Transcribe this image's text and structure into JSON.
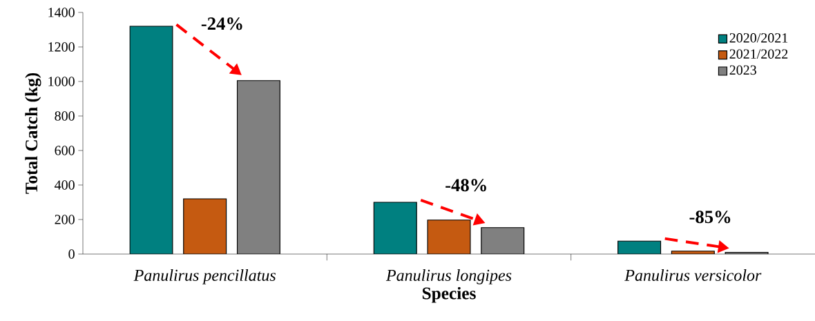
{
  "chart_data": {
    "type": "bar",
    "xlabel": "Species",
    "ylabel": "Total Catch (kg)",
    "categories": [
      "Panulirus pencillatus",
      "Panulirus longipes",
      "Panulirus versicolor"
    ],
    "series": [
      {
        "name": "2020/2021",
        "color": "#008080",
        "values": [
          1320,
          300,
          75
        ]
      },
      {
        "name": "2021/2022",
        "color": "#c55a11",
        "values": [
          320,
          197,
          17
        ]
      },
      {
        "name": "2023",
        "color": "#808080",
        "values": [
          1005,
          153,
          10
        ]
      }
    ],
    "ylim": [
      0,
      1400
    ],
    "yticks": [
      0,
      200,
      400,
      600,
      800,
      1000,
      1200,
      1400
    ],
    "legend": "top right",
    "grid": false,
    "annotations": [
      "-24%",
      "-48%",
      "-85%"
    ]
  }
}
